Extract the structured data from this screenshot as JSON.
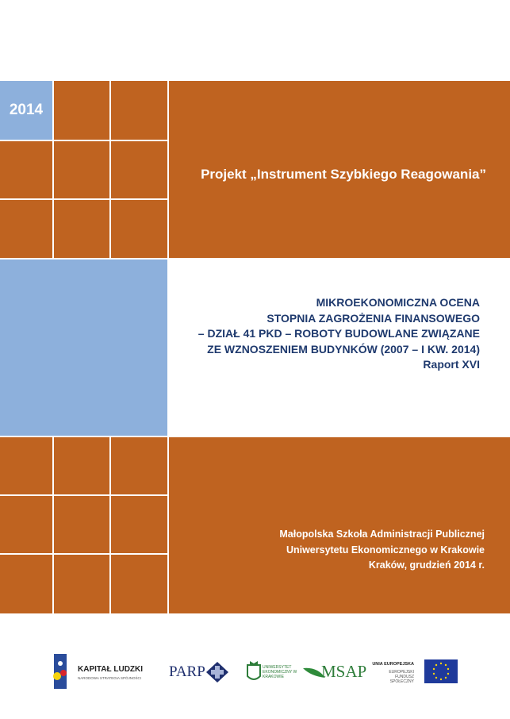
{
  "cover": {
    "year": "2014",
    "project": "Projekt „Instrument Szybkiego Reagowania”",
    "title_lines": [
      "MIKROEKONOMICZNA OCENA",
      "STOPNIA ZAGROŻENIA FINANSOWEGO",
      "– DZIAŁ 41 PKD – ROBOTY BUDOWLANE ZWIĄZANE",
      "ZE WZNOSZENIEM BUDYNKÓW (2007 – I KW. 2014)",
      "Raport XVI"
    ],
    "institution_lines": [
      "Małopolska Szkoła Administracji Publicznej",
      "Uniwersytetu Ekonomicznego w Krakowie",
      "Kraków, grudzień 2014 r."
    ],
    "colors": {
      "orange": "#BF6320",
      "blue": "#8DB0DC",
      "title": "#1F3A6E"
    }
  },
  "logos": {
    "kapital_ludzki": "KAPITAŁ LUDZKI",
    "kapital_sub": "NARODOWA STRATEGIA SPÓJNOŚCI",
    "parp": "PARP",
    "uek": "UNIWERSYTET EKONOMICZNY W KRAKOWIE",
    "msap": "MSAP",
    "ue": "UNIA EUROPEJSKA",
    "efs": "EUROPEJSKI FUNDUSZ SPOŁECZNY"
  }
}
